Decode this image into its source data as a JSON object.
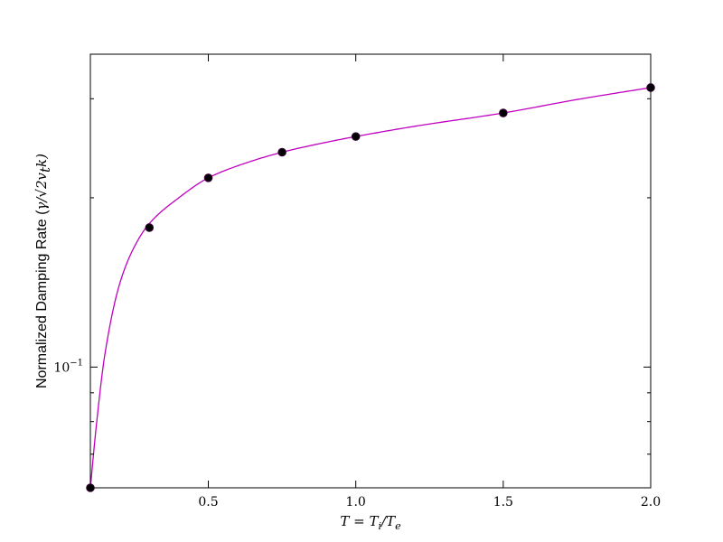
{
  "chart_data": {
    "type": "line",
    "xlabel": "T = Ti/Te",
    "ylabel": "Normalized Damping Rate (γ/√2vtk)",
    "xlim": [
      0.1,
      2.0
    ],
    "ylim": [
      0.061,
      0.36
    ],
    "yscale": "log",
    "grid": false,
    "x_ticks": [
      0.5,
      1.0,
      1.5,
      2.0
    ],
    "x_tick_labels": [
      "0.5",
      "1.0",
      "1.5",
      "2.0"
    ],
    "y_tick_major_value": 0.1,
    "y_tick_major_label": "10",
    "y_tick_major_exp": "−1",
    "colors": {
      "curve": "#bf00bf",
      "points": "#000000",
      "points_edge": "#3a003a"
    },
    "series": [
      {
        "kind": "curve",
        "x": [
          0.1,
          0.12,
          0.15,
          0.2,
          0.25,
          0.3,
          0.4,
          0.5,
          0.6,
          0.75,
          0.9,
          1.0,
          1.2,
          1.5,
          1.75,
          2.0
        ],
        "y": [
          0.061,
          0.0785,
          0.106,
          0.141,
          0.164,
          0.18,
          0.2,
          0.217,
          0.228,
          0.241,
          0.251,
          0.257,
          0.268,
          0.283,
          0.299,
          0.314
        ]
      },
      {
        "kind": "points",
        "x": [
          0.1,
          0.3,
          0.5,
          0.75,
          1.0,
          1.5,
          2.0
        ],
        "y": [
          0.061,
          0.177,
          0.217,
          0.241,
          0.257,
          0.283,
          0.314
        ]
      }
    ]
  }
}
